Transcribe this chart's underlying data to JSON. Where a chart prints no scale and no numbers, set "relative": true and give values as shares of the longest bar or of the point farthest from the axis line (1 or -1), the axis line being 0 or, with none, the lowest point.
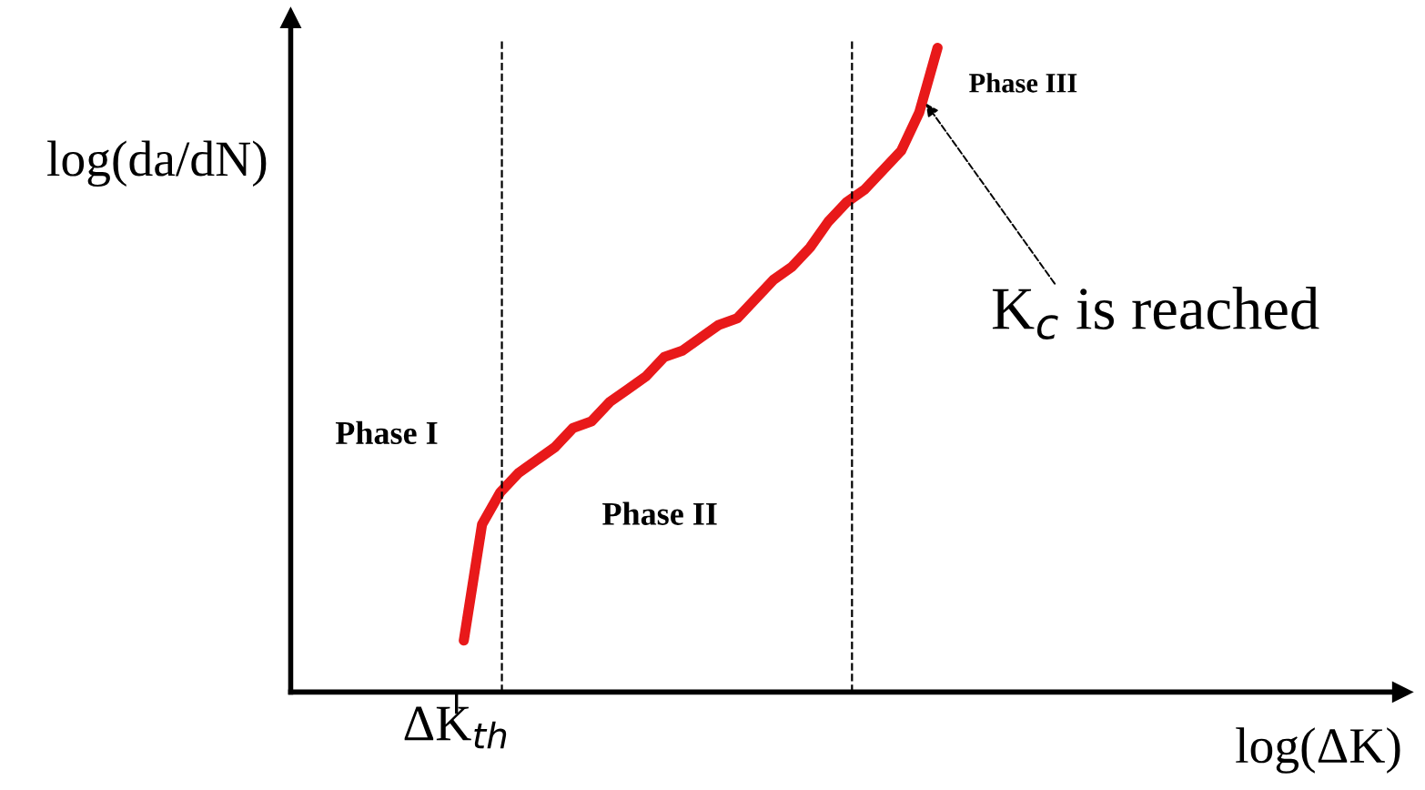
{
  "chart_data": {
    "type": "line",
    "relative": true,
    "xlabel": "log(ΔK)",
    "ylabel": "log(da/dN)",
    "categories": [
      null,
      null,
      null,
      null,
      null,
      null,
      null,
      null,
      null,
      null,
      null,
      null,
      null,
      null,
      null,
      null,
      null,
      null,
      null,
      null,
      null,
      null,
      null,
      null,
      null,
      null,
      null,
      null,
      null,
      null,
      null,
      null,
      null,
      null,
      null,
      null,
      null,
      null,
      null,
      null,
      null,
      null,
      null,
      null,
      null,
      null,
      null,
      null,
      null,
      null,
      null,
      null,
      null,
      null,
      null,
      null,
      null,
      null,
      null,
      null,
      null
    ],
    "series": [
      {
        "color": "#e8191a",
        "values": [
          null,
          null,
          null,
          null,
          null,
          null,
          null,
          null,
          null,
          0.08,
          0.26,
          0.31,
          0.34,
          0.36,
          0.38,
          0.41,
          0.42,
          0.45,
          0.47,
          0.49,
          0.52,
          0.53,
          0.55,
          0.57,
          0.58,
          0.61,
          0.64,
          0.66,
          0.69,
          0.73,
          0.76,
          0.78,
          0.81,
          0.84,
          0.9,
          1,
          null,
          null,
          null,
          null,
          null,
          null,
          null,
          null,
          null,
          null,
          null,
          null,
          null,
          null,
          null,
          null,
          null,
          null,
          null,
          null,
          null,
          null,
          null,
          null,
          null
        ]
      }
    ],
    "line_style": "solid",
    "marker": "none",
    "annotations": [
      "Phase I",
      "Phase II",
      "Phase III",
      "K$_{c}$ is reached",
      "ΔK$_{th}$"
    ]
  }
}
